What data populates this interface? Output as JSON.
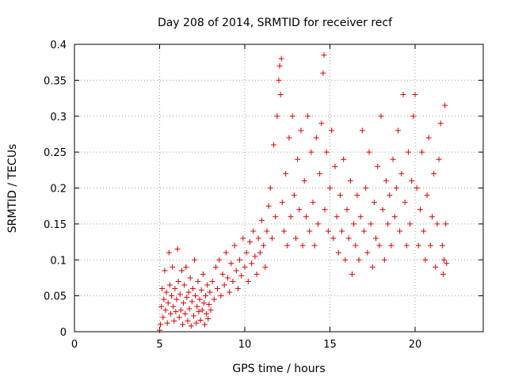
{
  "chart_data": {
    "type": "scatter",
    "title": "Day 208 of 2014, SRMTID for receiver recf",
    "xlabel": "GPS time / hours",
    "ylabel": "SRMTID / TECUs",
    "xlim": [
      0,
      24
    ],
    "ylim": [
      0,
      0.4
    ],
    "x_ticks": [
      "0",
      "5",
      "10",
      "15",
      "20"
    ],
    "y_ticks": [
      "0",
      "0.05",
      "0.1",
      "0.15",
      "0.2",
      "0.25",
      "0.3",
      "0.35",
      "0.4"
    ],
    "grid": true,
    "marker": "plus",
    "colors": {
      "series": "#e00000"
    },
    "series": [
      {
        "points": [
          [
            5.0,
            0.002
          ],
          [
            5.05,
            0.01
          ],
          [
            5.1,
            0.035
          ],
          [
            5.15,
            0.06
          ],
          [
            5.2,
            0.02
          ],
          [
            5.25,
            0.045
          ],
          [
            5.3,
            0.085
          ],
          [
            5.35,
            0.03
          ],
          [
            5.4,
            0.055
          ],
          [
            5.45,
            0.012
          ],
          [
            5.5,
            0.04
          ],
          [
            5.55,
            0.11
          ],
          [
            5.6,
            0.065
          ],
          [
            5.65,
            0.025
          ],
          [
            5.7,
            0.05
          ],
          [
            5.75,
            0.09
          ],
          [
            5.8,
            0.035
          ],
          [
            5.85,
            0.015
          ],
          [
            5.9,
            0.06
          ],
          [
            5.95,
            0.028
          ],
          [
            6.0,
            0.045
          ],
          [
            6.05,
            0.115
          ],
          [
            6.1,
            0.07
          ],
          [
            6.15,
            0.02
          ],
          [
            6.2,
            0.052
          ],
          [
            6.25,
            0.03
          ],
          [
            6.3,
            0.085
          ],
          [
            6.35,
            0.01
          ],
          [
            6.4,
            0.04
          ],
          [
            6.45,
            0.065
          ],
          [
            6.5,
            0.025
          ],
          [
            6.55,
            0.09
          ],
          [
            6.6,
            0.048
          ],
          [
            6.65,
            0.015
          ],
          [
            6.7,
            0.055
          ],
          [
            6.75,
            0.032
          ],
          [
            6.8,
            0.075
          ],
          [
            6.85,
            0.008
          ],
          [
            6.9,
            0.042
          ],
          [
            6.95,
            0.06
          ],
          [
            7.0,
            0.022
          ],
          [
            7.05,
            0.1
          ],
          [
            7.1,
            0.05
          ],
          [
            7.15,
            0.012
          ],
          [
            7.2,
            0.035
          ],
          [
            7.25,
            0.07
          ],
          [
            7.3,
            0.028
          ],
          [
            7.35,
            0.045
          ],
          [
            7.4,
            0.016
          ],
          [
            7.45,
            0.058
          ],
          [
            7.5,
            0.03
          ],
          [
            7.55,
            0.08
          ],
          [
            7.6,
            0.04
          ],
          [
            7.65,
            0.01
          ],
          [
            7.7,
            0.05
          ],
          [
            7.75,
            0.025
          ],
          [
            7.8,
            0.065
          ],
          [
            7.85,
            0.018
          ],
          [
            7.9,
            0.038
          ],
          [
            7.95,
            0.055
          ],
          [
            8.0,
            0.03
          ],
          [
            8.1,
            0.07
          ],
          [
            8.2,
            0.045
          ],
          [
            8.3,
            0.09
          ],
          [
            8.4,
            0.06
          ],
          [
            8.5,
            0.1
          ],
          [
            8.6,
            0.05
          ],
          [
            8.7,
            0.08
          ],
          [
            8.8,
            0.065
          ],
          [
            8.9,
            0.11
          ],
          [
            9.0,
            0.075
          ],
          [
            9.1,
            0.055
          ],
          [
            9.2,
            0.095
          ],
          [
            9.3,
            0.07
          ],
          [
            9.4,
            0.12
          ],
          [
            9.5,
            0.085
          ],
          [
            9.6,
            0.06
          ],
          [
            9.7,
            0.1
          ],
          [
            9.8,
            0.078
          ],
          [
            9.9,
            0.13
          ],
          [
            10.0,
            0.09
          ],
          [
            10.1,
            0.11
          ],
          [
            10.2,
            0.07
          ],
          [
            10.3,
            0.125
          ],
          [
            10.4,
            0.095
          ],
          [
            10.5,
            0.14
          ],
          [
            10.6,
            0.105
          ],
          [
            10.7,
            0.08
          ],
          [
            10.8,
            0.13
          ],
          [
            10.9,
            0.11
          ],
          [
            11.0,
            0.155
          ],
          [
            11.1,
            0.12
          ],
          [
            11.2,
            0.09
          ],
          [
            11.3,
            0.14
          ],
          [
            11.4,
            0.175
          ],
          [
            11.5,
            0.2
          ],
          [
            11.6,
            0.13
          ],
          [
            11.7,
            0.26
          ],
          [
            11.8,
            0.16
          ],
          [
            11.9,
            0.3
          ],
          [
            12.0,
            0.35
          ],
          [
            12.05,
            0.37
          ],
          [
            12.1,
            0.33
          ],
          [
            12.15,
            0.38
          ],
          [
            12.2,
            0.18
          ],
          [
            12.3,
            0.14
          ],
          [
            12.4,
            0.22
          ],
          [
            12.5,
            0.12
          ],
          [
            12.6,
            0.27
          ],
          [
            12.7,
            0.16
          ],
          [
            12.8,
            0.3
          ],
          [
            12.9,
            0.19
          ],
          [
            13.0,
            0.13
          ],
          [
            13.1,
            0.24
          ],
          [
            13.2,
            0.17
          ],
          [
            13.3,
            0.28
          ],
          [
            13.4,
            0.12
          ],
          [
            13.5,
            0.21
          ],
          [
            13.6,
            0.16
          ],
          [
            13.7,
            0.3
          ],
          [
            13.8,
            0.14
          ],
          [
            13.9,
            0.25
          ],
          [
            14.0,
            0.18
          ],
          [
            14.1,
            0.12
          ],
          [
            14.2,
            0.27
          ],
          [
            14.3,
            0.15
          ],
          [
            14.4,
            0.22
          ],
          [
            14.5,
            0.29
          ],
          [
            14.6,
            0.36
          ],
          [
            14.65,
            0.385
          ],
          [
            14.7,
            0.17
          ],
          [
            14.8,
            0.25
          ],
          [
            14.9,
            0.14
          ],
          [
            15.0,
            0.2
          ],
          [
            15.1,
            0.28
          ],
          [
            15.2,
            0.13
          ],
          [
            15.3,
            0.23
          ],
          [
            15.4,
            0.16
          ],
          [
            15.5,
            0.11
          ],
          [
            15.6,
            0.19
          ],
          [
            15.7,
            0.14
          ],
          [
            15.8,
            0.24
          ],
          [
            15.9,
            0.1
          ],
          [
            16.0,
            0.17
          ],
          [
            16.1,
            0.13
          ],
          [
            16.2,
            0.21
          ],
          [
            16.3,
            0.08
          ],
          [
            16.4,
            0.15
          ],
          [
            16.5,
            0.12
          ],
          [
            16.6,
            0.19
          ],
          [
            16.7,
            0.1
          ],
          [
            16.8,
            0.16
          ],
          [
            16.9,
            0.28
          ],
          [
            17.0,
            0.14
          ],
          [
            17.1,
            0.2
          ],
          [
            17.2,
            0.11
          ],
          [
            17.3,
            0.25
          ],
          [
            17.4,
            0.15
          ],
          [
            17.5,
            0.09
          ],
          [
            17.6,
            0.18
          ],
          [
            17.7,
            0.13
          ],
          [
            17.8,
            0.23
          ],
          [
            17.9,
            0.12
          ],
          [
            18.0,
            0.3
          ],
          [
            18.1,
            0.17
          ],
          [
            18.2,
            0.1
          ],
          [
            18.3,
            0.21
          ],
          [
            18.4,
            0.15
          ],
          [
            18.5,
            0.19
          ],
          [
            18.6,
            0.12
          ],
          [
            18.7,
            0.24
          ],
          [
            18.8,
            0.16
          ],
          [
            18.9,
            0.2
          ],
          [
            19.0,
            0.28
          ],
          [
            19.1,
            0.14
          ],
          [
            19.2,
            0.22
          ],
          [
            19.3,
            0.33
          ],
          [
            19.4,
            0.18
          ],
          [
            19.5,
            0.12
          ],
          [
            19.6,
            0.25
          ],
          [
            19.7,
            0.15
          ],
          [
            19.8,
            0.21
          ],
          [
            19.9,
            0.3
          ],
          [
            20.0,
            0.33
          ],
          [
            20.1,
            0.2
          ],
          [
            20.2,
            0.12
          ],
          [
            20.3,
            0.17
          ],
          [
            20.4,
            0.25
          ],
          [
            20.5,
            0.14
          ],
          [
            20.6,
            0.1
          ],
          [
            20.7,
            0.19
          ],
          [
            20.8,
            0.27
          ],
          [
            20.9,
            0.12
          ],
          [
            21.0,
            0.16
          ],
          [
            21.1,
            0.22
          ],
          [
            21.2,
            0.09
          ],
          [
            21.3,
            0.15
          ],
          [
            21.4,
            0.24
          ],
          [
            21.5,
            0.29
          ],
          [
            21.6,
            0.12
          ],
          [
            21.65,
            0.08
          ],
          [
            21.7,
            0.1
          ],
          [
            21.75,
            0.315
          ],
          [
            21.8,
            0.15
          ],
          [
            21.85,
            0.095
          ]
        ]
      }
    ]
  }
}
